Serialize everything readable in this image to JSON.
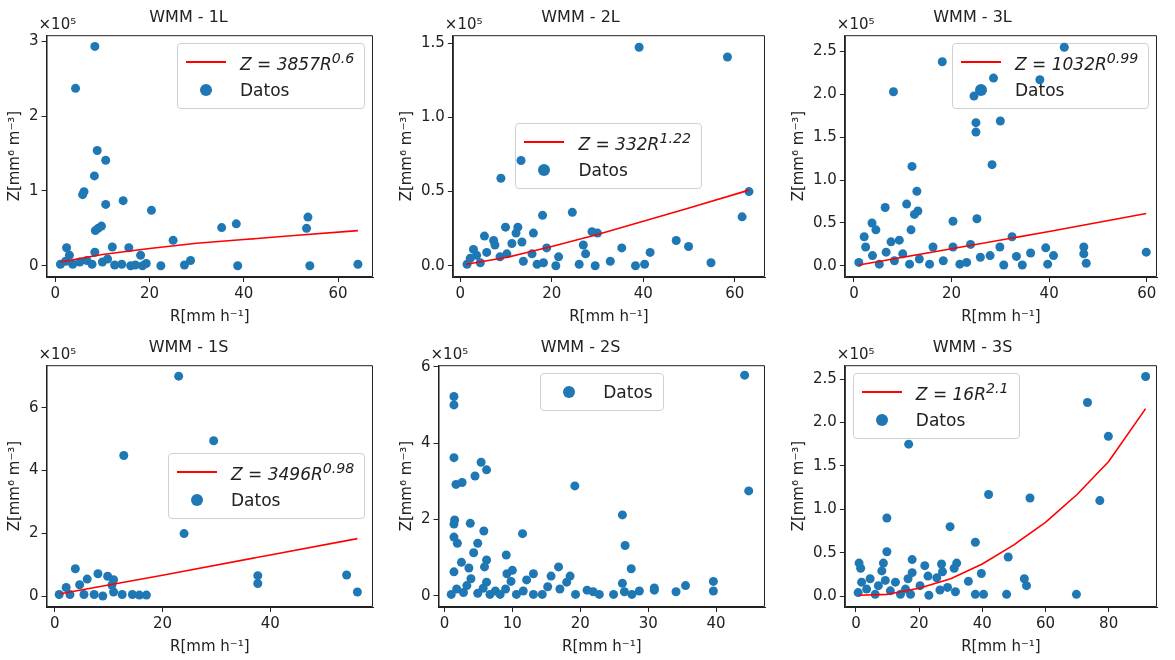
{
  "chart_data": [
    {
      "type": "scatter",
      "title": "WMM - 1L",
      "xlabel": "R[mm h⁻¹]",
      "ylabel": "Z[mm⁶ m⁻³]",
      "annotations": [
        "×10⁵"
      ],
      "legend": "top right",
      "xlim": [
        -1.85,
        67.4
      ],
      "xticks": [
        0,
        20,
        40,
        60
      ],
      "ylim": [
        -0.15,
        3.08
      ],
      "yticks": [
        0,
        1,
        2,
        3
      ],
      "series": [
        {
          "name": "Z = 3857R$^{0.6}$",
          "type": "line",
          "color": "#ff0000",
          "marker": "none",
          "x": [
            1.1,
            10,
            20,
            30,
            40,
            50,
            64.2
          ],
          "values": [
            0.05,
            0.15,
            0.23,
            0.3,
            0.35,
            0.4,
            0.47
          ]
        },
        {
          "name": "Datos",
          "type": "scatter",
          "color": "#1f77b4",
          "marker": "circle",
          "x": [
            8.4,
            4.3,
            8.9,
            10.7,
            8.3,
            6.1,
            5.8,
            10.7,
            14.4,
            20.4,
            8.5,
            9.1,
            9.8,
            25,
            35.3,
            38.4,
            53.3,
            53.6,
            12.1,
            2.4,
            15.6,
            3,
            18.1,
            8.4,
            22.4,
            27.4,
            28.7,
            38.7,
            54,
            64.2,
            1.1,
            2.2,
            3.7,
            5.2,
            6.7,
            7.8,
            10,
            11.1,
            12.6,
            14.1,
            16,
            18.5,
            19.3,
            17
          ],
          "values": [
            2.93,
            2.37,
            1.54,
            1.41,
            1.2,
            0.99,
            0.95,
            0.82,
            0.87,
            0.74,
            0.47,
            0.5,
            0.53,
            0.34,
            0.51,
            0.56,
            0.5,
            0.65,
            0.25,
            0.24,
            0.24,
            0.14,
            0.14,
            0.18,
            0,
            0.01,
            0.07,
            0,
            0,
            0.02,
            0.02,
            0.06,
            0.02,
            0.05,
            0.07,
            0.02,
            0.05,
            0.09,
            0.01,
            0.02,
            0,
            0,
            0.03,
            0.01
          ]
        }
      ]
    },
    {
      "type": "scatter",
      "title": "WMM - 2L",
      "xlabel": "R[mm h⁻¹]",
      "ylabel": "Z[mm⁶ m⁻³]",
      "annotations": [
        "×10⁵"
      ],
      "legend": "center",
      "xlim": [
        -1.6,
        66.6
      ],
      "xticks": [
        0,
        20,
        40,
        60
      ],
      "ylim": [
        -0.076,
        1.555
      ],
      "yticks": [
        {
          "value": 0,
          "label": "0.0"
        },
        0.5,
        {
          "value": 1,
          "label": "1.0"
        },
        1.5
      ],
      "series": [
        {
          "name": "Z = 332R$^{1.22}$",
          "type": "line",
          "color": "#ff0000",
          "marker": "none",
          "x": [
            1.3,
            10,
            20,
            30,
            40,
            50,
            63.1
          ],
          "values": [
            0.01,
            0.055,
            0.13,
            0.21,
            0.3,
            0.39,
            0.51
          ]
        },
        {
          "name": "Datos",
          "type": "scatter",
          "color": "#1f77b4",
          "marker": "circle",
          "x": [
            39.1,
            58.4,
            13.3,
            8.9,
            63.1,
            61.6,
            24.5,
            18,
            28.8,
            30,
            16,
            9.9,
            12.6,
            12.2,
            5.3,
            47.2,
            49.9,
            26.9,
            35.3,
            41.5,
            32.8,
            27.4,
            29.5,
            26,
            20.9,
            38.3,
            40.3,
            54.8,
            21.5,
            18.9,
            1.5,
            2.2,
            3.6,
            4.4,
            5.8,
            7.6,
            8.7,
            10.2,
            11.3,
            13.5,
            13.8,
            15.7,
            16.8,
            18.2,
            7.3,
            2.9
          ],
          "values": [
            1.474,
            1.408,
            0.71,
            0.59,
            0.5,
            0.33,
            0.36,
            0.34,
            0.23,
            0.22,
            0.22,
            0.26,
            0.26,
            0.22,
            0.2,
            0.17,
            0.13,
            0.14,
            0.12,
            0.09,
            0.03,
            0.08,
            0,
            0.01,
            0,
            0,
            0.01,
            0.02,
            0.06,
            0.12,
            0.01,
            0.05,
            0.07,
            0.02,
            0.09,
            0.14,
            0.06,
            0.08,
            0.15,
            0.16,
            0.03,
            0.08,
            0.01,
            0.02,
            0.17,
            0.11
          ]
        }
      ]
    },
    {
      "type": "scatter",
      "title": "WMM - 3L",
      "xlabel": "R[mm h⁻¹]",
      "ylabel": "Z[mm⁶ m⁻³]",
      "annotations": [
        "×10⁵"
      ],
      "legend": "top right",
      "xlim": [
        -1.86,
        62.1
      ],
      "xticks": [
        0,
        20,
        40,
        60
      ],
      "ylim": [
        -0.13,
        2.69
      ],
      "yticks": [
        {
          "value": 0,
          "label": "0.0"
        },
        0.5,
        {
          "value": 1,
          "label": "1.0"
        },
        1.5,
        {
          "value": 2,
          "label": "2.0"
        },
        2.5
      ],
      "series": [
        {
          "name": "Z = 1032R$^{0.99}$",
          "type": "line",
          "color": "#ff0000",
          "marker": "none",
          "x": [
            1,
            20,
            40,
            59.9
          ],
          "values": [
            0.01,
            0.2,
            0.4,
            0.61
          ]
        },
        {
          "name": "Datos",
          "type": "scatter",
          "color": "#1f77b4",
          "marker": "circle",
          "x": [
            43.1,
            18.1,
            28.6,
            38.1,
            8.1,
            24.6,
            25,
            25,
            30,
            28.3,
            11.9,
            12.9,
            10.8,
            6.4,
            13.1,
            12.4,
            25.2,
            20.3,
            3.7,
            4.5,
            2.1,
            11.7,
            32.4,
            23.9,
            29.9,
            33.3,
            9.3,
            7.6,
            39.3,
            47.1,
            47.1,
            40.9,
            36.2,
            47.6,
            59.9,
            30.7,
            34.5,
            39.7,
            27.9,
            1,
            2.4,
            3.8,
            5.2,
            6.6,
            8.3,
            10,
            11.4,
            13.4,
            15.5,
            16.2,
            18.3,
            20.3,
            21.7,
            23.1,
            25.9
          ],
          "values": [
            2.55,
            2.38,
            2.19,
            2.17,
            2.03,
            1.98,
            1.67,
            1.56,
            1.69,
            1.18,
            1.16,
            0.87,
            0.72,
            0.68,
            0.64,
            0.6,
            0.55,
            0.52,
            0.5,
            0.42,
            0.34,
            0.42,
            0.34,
            0.25,
            0.22,
            0.11,
            0.3,
            0.28,
            0.21,
            0.22,
            0.14,
            0.12,
            0.15,
            0.03,
            0.16,
            0.01,
            0.01,
            0.02,
            0.12,
            0.04,
            0.22,
            0.12,
            0.02,
            0.16,
            0.06,
            0.14,
            0.02,
            0.08,
            0.02,
            0.22,
            0.06,
            0.22,
            0.02,
            0.04,
            0.1
          ]
        }
      ]
    },
    {
      "type": "scatter",
      "title": "WMM - 1S",
      "xlabel": "R[mm h⁻¹]",
      "ylabel": "Z[mm⁶ m⁻³]",
      "annotations": [
        "×10⁵"
      ],
      "legend": "center right",
      "xlim": [
        -1.55,
        59.1
      ],
      "xticks": [
        0,
        20,
        40
      ],
      "ylim": [
        -0.35,
        7.36
      ],
      "yticks": [
        0,
        2,
        4,
        6
      ],
      "series": [
        {
          "name": "Z = 3496R$^{0.98}$",
          "type": "line",
          "color": "#ff0000",
          "marker": "none",
          "x": [
            1,
            20,
            40,
            56.2
          ],
          "values": [
            0.07,
            0.66,
            1.31,
            1.83
          ]
        },
        {
          "name": "Datos",
          "type": "scatter",
          "color": "#1f77b4",
          "marker": "circle",
          "x": [
            23,
            29.5,
            12.8,
            24,
            3.8,
            8,
            9.8,
            10.9,
            10.6,
            6,
            4.6,
            2.1,
            37.7,
            37.7,
            54.2,
            56.2,
            0.8,
            2.8,
            5.4,
            7.3,
            8.9,
            10.9,
            12.5,
            14.4,
            15.7,
            17
          ],
          "values": [
            7.01,
            4.95,
            4.48,
            1.99,
            0.87,
            0.71,
            0.63,
            0.52,
            0.35,
            0.54,
            0.36,
            0.27,
            0.65,
            0.4,
            0.67,
            0.13,
            0.05,
            0.05,
            0.05,
            0.05,
            0,
            0.13,
            0.05,
            0.05,
            0.03,
            0.03
          ]
        }
      ]
    },
    {
      "type": "scatter",
      "title": "WMM - 2S",
      "xlabel": "R[mm h⁻¹]",
      "ylabel": "Z[mm⁶ m⁻³]",
      "annotations": [
        "×10⁵"
      ],
      "legend": "top",
      "xlim": [
        -0.87,
        47.2
      ],
      "xticks": [
        0,
        10,
        20,
        30,
        40
      ],
      "ylim": [
        -0.29,
        6.04
      ],
      "yticks": [
        0,
        2,
        4,
        6
      ],
      "series": [
        {
          "name": "Datos",
          "type": "scatter",
          "color": "#1f77b4",
          "marker": "circle",
          "x": [
            44.2,
            44.8,
            1.4,
            1.4,
            1.4,
            5.4,
            6.2,
            4.5,
            1.7,
            2.6,
            19.2,
            26.2,
            26.6,
            27.5,
            1.5,
            1.4,
            3.8,
            5.8,
            11.5,
            1.4,
            1.9,
            4.9,
            4.3,
            9.1,
            2.5,
            3.6,
            1.4,
            6.2,
            5.9,
            16.8,
            18.5,
            15.7,
            13.1,
            12.1,
            10,
            9.2,
            9.8,
            26.2,
            39.6,
            39.6,
            35.5,
            34.1,
            30.9,
            30.9,
            28.7,
            27.6,
            26.5,
            24.9,
            22.8,
            21.9,
            21,
            19.3,
            17,
            18,
            15.2,
            14.4,
            3.9,
            6.2,
            1,
            1.8,
            2.8,
            3.3,
            4.9,
            5.7,
            6.7,
            7.5,
            8.2,
            9,
            10.6,
            11.6,
            13.1
          ],
          "values": [
            5.78,
            2.75,
            5.22,
            5,
            3.62,
            3.5,
            3.3,
            3.14,
            2.92,
            2.97,
            2.88,
            2.12,
            1.32,
            0.71,
            1.99,
            1.88,
            1.9,
            1.7,
            1.63,
            1.54,
            1.38,
            1.38,
            1.13,
            1.07,
            0.88,
            0.73,
            0.63,
            0.94,
            0.76,
            0.76,
            0.52,
            0.52,
            0.58,
            0.42,
            0.67,
            0.58,
            0.38,
            0.33,
            0.38,
            0.13,
            0.27,
            0.11,
            0.21,
            0.15,
            0.13,
            0.04,
            0.11,
            0.04,
            0.04,
            0.11,
            0.15,
            0.04,
            0.18,
            0.36,
            0.24,
            0.04,
            0.45,
            0.36,
            0.04,
            0.18,
            0.09,
            0.27,
            0.07,
            0.2,
            0.04,
            0.13,
            0.04,
            0.18,
            0.04,
            0.13,
            0.04
          ]
        }
      ]
    },
    {
      "type": "scatter",
      "title": "WMM - 3S",
      "xlabel": "R[mm h⁻¹]",
      "ylabel": "Z[mm⁶ m⁻³]",
      "annotations": [
        "×10⁵"
      ],
      "legend": "top left",
      "xlim": [
        -3.5,
        95.3
      ],
      "xticks": [
        0,
        20,
        40,
        60,
        80
      ],
      "ylim": [
        -0.126,
        2.66
      ],
      "yticks": [
        {
          "value": 0,
          "label": "0.0"
        },
        0.5,
        {
          "value": 1,
          "label": "1.0"
        },
        1.5,
        {
          "value": 2,
          "label": "2.0"
        },
        2.5
      ],
      "series": [
        {
          "name": "Z = 16R$^{2.1}$",
          "type": "line",
          "color": "#ff0000",
          "marker": "none",
          "x": [
            1,
            10,
            20,
            30,
            40,
            50,
            60,
            70,
            80,
            91.7
          ],
          "values": [
            0.01,
            0.02,
            0.09,
            0.2,
            0.37,
            0.59,
            0.85,
            1.17,
            1.55,
            2.16
          ]
        },
        {
          "name": "Datos",
          "type": "scatter",
          "color": "#1f77b4",
          "marker": "circle",
          "x": [
            91.7,
            73.3,
            79.9,
            77.2,
            55.1,
            42,
            16.7,
            9.8,
            29.8,
            37.8,
            48.2,
            9.8,
            17.8,
            1,
            1.5,
            8.7,
            8.2,
            21.8,
            27.1,
            31.9,
            31.1,
            17.8,
            22.8,
            27.4,
            25.6,
            35.6,
            39.7,
            53.3,
            54,
            23.1,
            26.6,
            31.5,
            37.8,
            40.4,
            47.7,
            69.8,
            29,
            20.3,
            16.5,
            0.7,
            1.8,
            3.4,
            4.5,
            6.1,
            7.1,
            9.3,
            10.9,
            12.5,
            14.1,
            15.7,
            17.3
          ],
          "values": [
            2.53,
            2.23,
            1.84,
            1.1,
            1.13,
            1.17,
            1.75,
            0.9,
            0.8,
            0.62,
            0.45,
            0.51,
            0.42,
            0.38,
            0.32,
            0.38,
            0.29,
            0.35,
            0.37,
            0.38,
            0.32,
            0.27,
            0.23,
            0.28,
            0.21,
            0.17,
            0.26,
            0.2,
            0.12,
            0.01,
            0.07,
            0.05,
            0.02,
            0.02,
            0.02,
            0.02,
            0.1,
            0.12,
            0.2,
            0.04,
            0.16,
            0.08,
            0.2,
            0.02,
            0.12,
            0.18,
            0.06,
            0.16,
            0.02,
            0.08,
            0.02
          ]
        }
      ]
    }
  ]
}
